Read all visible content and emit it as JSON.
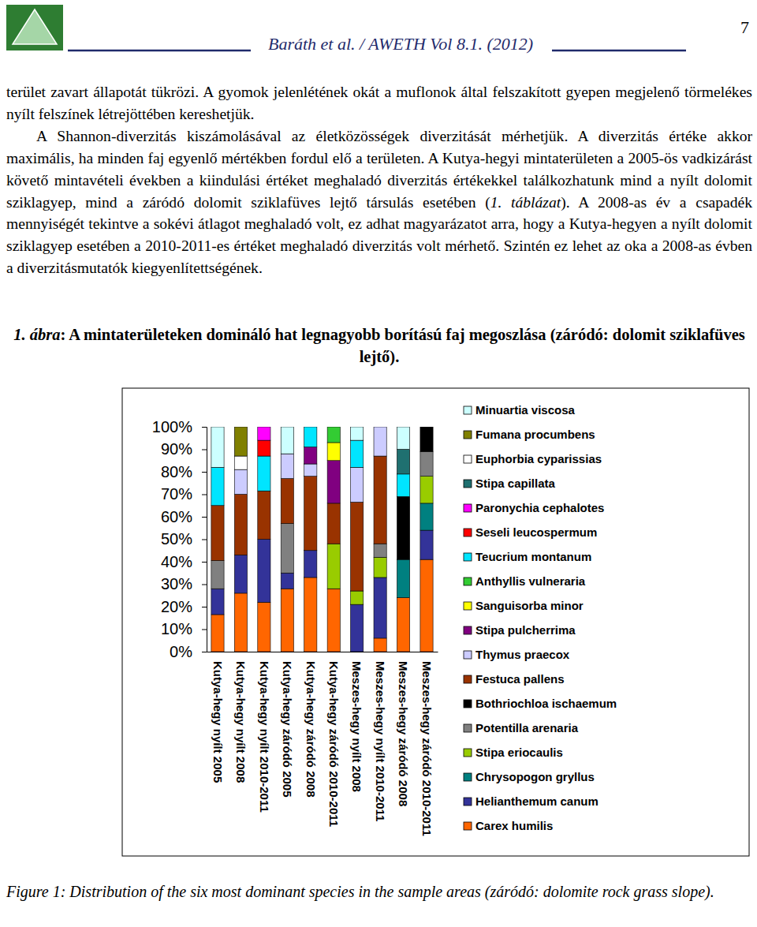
{
  "header": {
    "citation": "Baráth et al. / AWETH Vol 8.1. (2012)",
    "page_number": "7"
  },
  "paragraphs": [
    [
      "terület zavart állapotát tükrözi. A gyomok jelenlétének okát a muflonok által felszakított gyepen megjelenő törmelékes nyílt felszínek létrejöttében kereshetjük."
    ],
    [
      "A Shannon-diverzitás kiszámolásával az életközösségek diverzitását mérhetjük. A diverzitás értéke akkor maximális, ha minden faj egyenlő mértékben fordul elő a területen. A Kutya-hegyi mintaterületen a 2005-ös vadkizárást követő mintavételi években a kiindulási értéket meghaladó diverzitás értékekkel találkozhatunk mind a nyílt dolomit sziklagyep, mind a záródó dolomit sziklafüves lejtő társulás esetében (",
      "1. táblázat",
      "). A 2008-as év a csapadék mennyiségét tekintve a sokévi átlagot meghaladó volt, ez adhat magyarázatot arra, hogy a Kutya-hegyen a nyílt dolomit sziklagyep esetében a 2010-2011-es értéket meghaladó diverzitás volt mérhető. Szintén ez lehet az oka a 2008-as évben a diverzitásmutatók kiegyenlítettségének."
    ]
  ],
  "figure": {
    "label": "1. ábra",
    "title": ": A mintaterületeken domináló hat legnagyobb borítású faj megoszlása (záródó: dolomit sziklafüves lejtő).",
    "caption_en": "Figure 1: Distribution of the six most dominant species in the sample areas (záródó: dolomite rock grass slope)."
  },
  "chart_data": {
    "type": "bar",
    "stacked": true,
    "grid": false,
    "legend": "right",
    "categories": [
      "Kutya-hegy nyílt 2005",
      "Kutya-hegy nyílt 2008",
      "Kutya-hegy nyílt 2010-2011",
      "Kutya-hegy záródó 2005",
      "Kutya-hegy záródó 2008",
      "Kutya-hegy záródó 2010-2011",
      "Meszes-hegy nyílt 2008",
      "Meszes-hegy nyílt 2010-2011",
      "Meszes-hegy záródó 2008",
      "Meszes-hegy záródó 2010-2011"
    ],
    "ylim": [
      0,
      100
    ],
    "yticks": [
      {
        "value": 0,
        "label": "0%"
      },
      {
        "value": 10,
        "label": "10%"
      },
      {
        "value": 20,
        "label": "20%"
      },
      {
        "value": 30,
        "label": "30%"
      },
      {
        "value": 40,
        "label": "40%"
      },
      {
        "value": 50,
        "label": "50%"
      },
      {
        "value": 60,
        "label": "60%"
      },
      {
        "value": 70,
        "label": "70%"
      },
      {
        "value": 80,
        "label": "80%"
      },
      {
        "value": 90,
        "label": "90%"
      },
      {
        "value": 100,
        "label": "100%"
      }
    ],
    "series": [
      {
        "name": "Minuartia viscosa",
        "color": "#ccffff",
        "values": [
          18,
          null,
          null,
          12,
          null,
          null,
          6,
          null,
          10,
          null
        ]
      },
      {
        "name": "Fumana procumbens",
        "color": "#808000",
        "values": [
          null,
          13,
          null,
          null,
          null,
          null,
          null,
          null,
          null,
          null
        ]
      },
      {
        "name": "Euphorbia cyparissias",
        "color": "#ffffff",
        "values": [
          null,
          6,
          null,
          null,
          null,
          null,
          null,
          null,
          null,
          null
        ]
      },
      {
        "name": "Stipa capillata",
        "color": "#1f7070",
        "values": [
          null,
          null,
          null,
          null,
          null,
          null,
          null,
          null,
          11,
          null
        ]
      },
      {
        "name": "Paronychia cephalotes",
        "color": "#ff00ff",
        "values": [
          null,
          null,
          6,
          null,
          null,
          null,
          null,
          null,
          null,
          null
        ]
      },
      {
        "name": "Seseli leucospermum",
        "color": "#ff0000",
        "values": [
          null,
          null,
          7,
          null,
          null,
          null,
          null,
          null,
          null,
          null
        ]
      },
      {
        "name": "Teucrium montanum",
        "color": "#00e5ff",
        "values": [
          17,
          null,
          15.5,
          null,
          9,
          null,
          12,
          null,
          10,
          null
        ]
      },
      {
        "name": "Anthyllis vulneraria",
        "color": "#33cc33",
        "values": [
          null,
          null,
          null,
          null,
          null,
          7,
          null,
          null,
          null,
          null
        ]
      },
      {
        "name": "Sanguisorba minor",
        "color": "#ffff00",
        "values": [
          null,
          null,
          null,
          null,
          null,
          8,
          null,
          null,
          null,
          null
        ]
      },
      {
        "name": "Stipa pulcherrima",
        "color": "#800080",
        "values": [
          null,
          null,
          null,
          null,
          7.5,
          19,
          null,
          null,
          null,
          null
        ]
      },
      {
        "name": "Thymus praecox",
        "color": "#ccccff",
        "values": [
          null,
          11,
          null,
          11,
          5.5,
          null,
          15.5,
          13,
          null,
          null
        ]
      },
      {
        "name": "Festuca pallens",
        "color": "#993300",
        "values": [
          24.5,
          27,
          21.5,
          20,
          33,
          18,
          39.5,
          39,
          null,
          null
        ]
      },
      {
        "name": "Bothriochloa ischaemum",
        "color": "#000000",
        "values": [
          null,
          null,
          null,
          null,
          null,
          null,
          null,
          null,
          28,
          11
        ]
      },
      {
        "name": "Potentilla arenaria",
        "color": "#808080",
        "values": [
          12.5,
          null,
          null,
          22,
          null,
          null,
          null,
          6,
          null,
          11
        ]
      },
      {
        "name": "Stipa eriocaulis",
        "color": "#99cc00",
        "values": [
          null,
          null,
          null,
          null,
          null,
          20,
          6,
          9,
          null,
          12
        ]
      },
      {
        "name": "Chrysopogon gryllus",
        "color": "#008080",
        "values": [
          null,
          null,
          null,
          null,
          null,
          null,
          null,
          null,
          17,
          12
        ]
      },
      {
        "name": "Helianthemum canum",
        "color": "#333399",
        "values": [
          11.5,
          17,
          28,
          7,
          12,
          null,
          21,
          27,
          null,
          13
        ]
      },
      {
        "name": "Carex humilis",
        "color": "#ff6600",
        "values": [
          16.5,
          26,
          22,
          28,
          33,
          28,
          null,
          6,
          24,
          41
        ]
      }
    ]
  }
}
